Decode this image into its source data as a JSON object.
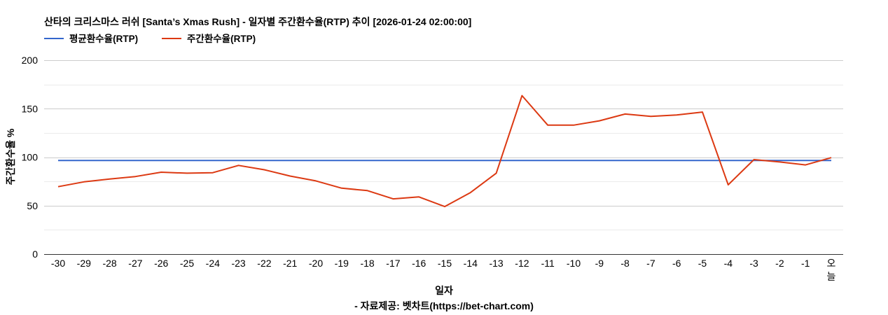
{
  "chart_data": {
    "type": "line",
    "title": "산타의 크리스마스 러쉬 [Santa’s Xmas Rush] - 일자별 주간환수율(RTP) 추이 [2026-01-24 02:00:00]",
    "xlabel": "일자",
    "source_note": "- 자료제공: 벳차트(https://bet-chart.com)",
    "ylabel": "주간환수율 %",
    "ylim": [
      0,
      200
    ],
    "yticks": [
      0,
      50,
      100,
      150,
      200
    ],
    "grid": true,
    "legend_position": "top-left",
    "categories": [
      "-30",
      "-29",
      "-28",
      "-27",
      "-26",
      "-25",
      "-24",
      "-23",
      "-22",
      "-21",
      "-20",
      "-19",
      "-18",
      "-17",
      "-16",
      "-15",
      "-14",
      "-13",
      "-12",
      "-11",
      "-10",
      "-9",
      "-8",
      "-7",
      "-6",
      "-5",
      "-4",
      "-3",
      "-2",
      "-1",
      "오늘"
    ],
    "series": [
      {
        "name": "평균환수율(RTP)",
        "color": "#3366cc",
        "values": [
          96.5,
          96.5,
          96.5,
          96.5,
          96.5,
          96.5,
          96.5,
          96.5,
          96.5,
          96.5,
          96.5,
          96.5,
          96.5,
          96.5,
          96.5,
          96.5,
          96.5,
          96.5,
          96.5,
          96.5,
          96.5,
          96.5,
          96.5,
          96.5,
          96.5,
          96.5,
          96.5,
          96.5,
          96.5,
          96.5,
          96.5
        ]
      },
      {
        "name": "주간환수율(RTP)",
        "color": "#dc3912",
        "values": [
          69.5,
          74.5,
          77.5,
          80,
          84.5,
          83.5,
          84,
          91.5,
          87,
          80.5,
          75.5,
          68,
          65.5,
          57,
          59,
          49,
          63.5,
          83.5,
          163.5,
          133,
          133,
          137.5,
          144.5,
          142,
          143.5,
          146.5,
          71.5,
          97.5,
          95,
          92,
          99.5
        ]
      }
    ]
  }
}
